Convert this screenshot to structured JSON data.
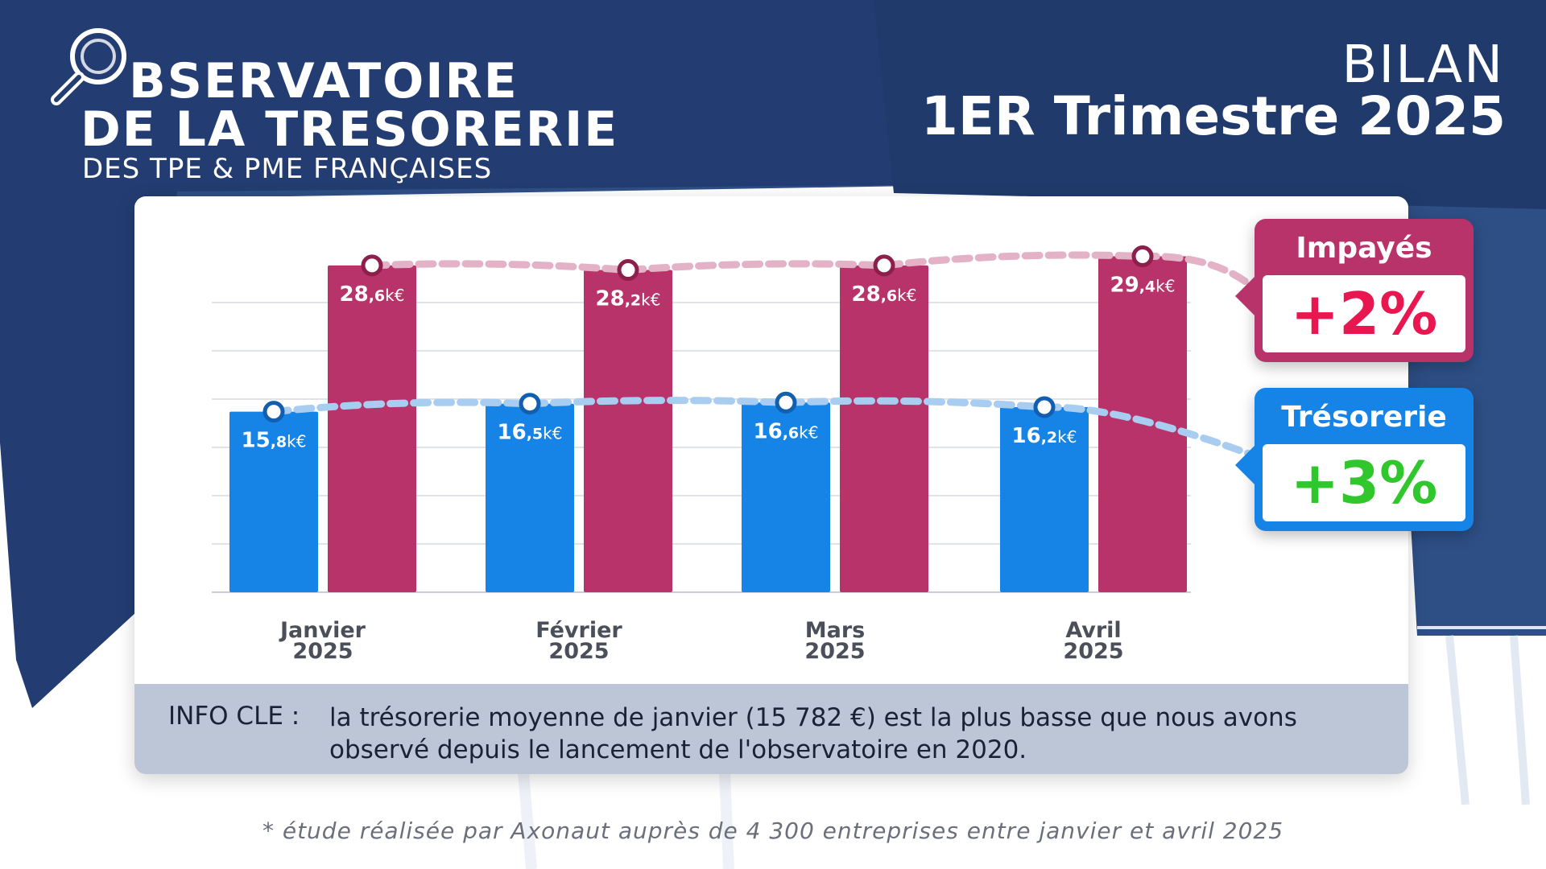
{
  "brand": {
    "line1": "BSERVATOIRE",
    "line2": "DE LA TRESORERIE",
    "line3": "DES TPE & PME FRANÇAISES"
  },
  "header": {
    "bilan": "BILAN",
    "period": "1ER Trimestre 2025"
  },
  "colors": {
    "navy": "#223a6a",
    "tresorerie": "#1683e6",
    "impayes": "#b8336a",
    "positive_green": "#2fc72c",
    "impayes_percent": "#e8174f"
  },
  "callouts": {
    "impayes": {
      "title": "Impayés",
      "value": "+2%"
    },
    "tresorerie": {
      "title": "Trésorerie",
      "value": "+3%"
    }
  },
  "info": {
    "label": "INFO CLE :",
    "text": "la trésorerie moyenne de janvier (15 782 €) est la plus basse que nous avons observé depuis le lancement de l'observatoire en 2020."
  },
  "footnote": "* étude réalisée par Axonaut auprès de 4 300 entreprises entre janvier et avril 2025",
  "chart_data": {
    "type": "bar",
    "categories": [
      "Janvier 2025",
      "Février 2025",
      "Mars 2025",
      "Avril 2025"
    ],
    "category_lines": [
      [
        "Janvier",
        "2025"
      ],
      [
        "Février",
        "2025"
      ],
      [
        "Mars",
        "2025"
      ],
      [
        "Avril",
        "2025"
      ]
    ],
    "series": [
      {
        "name": "Trésorerie",
        "values": [
          15.8,
          16.5,
          16.6,
          16.2
        ],
        "labels": [
          [
            "15",
            ",8",
            "k€"
          ],
          [
            "16",
            ",5",
            "k€"
          ],
          [
            "16",
            ",6",
            "k€"
          ],
          [
            "16",
            ",2",
            "k€"
          ]
        ]
      },
      {
        "name": "Impayés",
        "values": [
          28.6,
          28.2,
          28.6,
          29.4
        ],
        "labels": [
          [
            "28",
            ",6",
            "k€"
          ],
          [
            "28",
            ",2",
            "k€"
          ],
          [
            "28",
            ",6",
            "k€"
          ],
          [
            "29",
            ",4",
            "k€"
          ]
        ]
      }
    ],
    "ylim": [
      0,
      30
    ],
    "grid": true,
    "legend": "right"
  }
}
